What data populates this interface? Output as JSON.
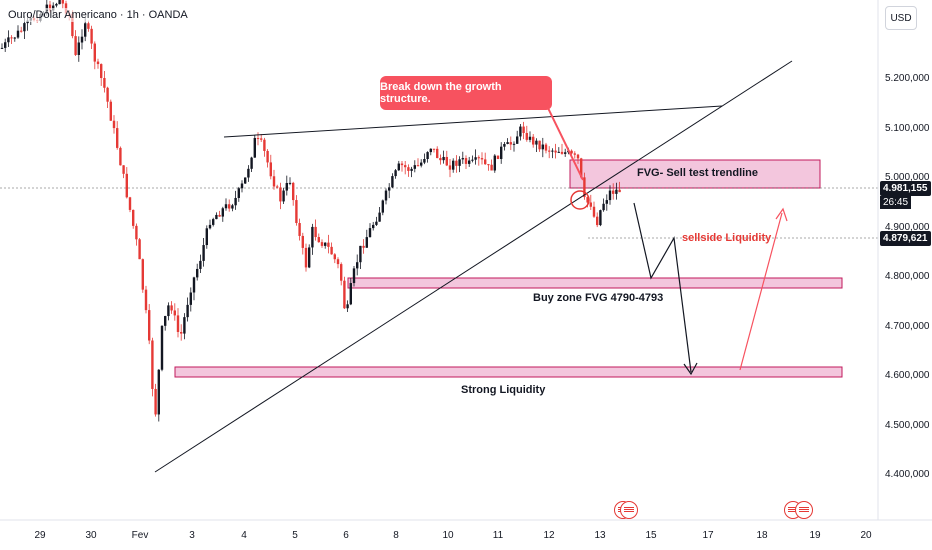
{
  "header": {
    "title": "Ouro/Dólar Americano · 1h · OANDA",
    "currency": "USD"
  },
  "price_axis": {
    "ticks": [
      "5.200,000",
      "5.100,000",
      "5.000,000",
      "4.900,000",
      "4.800,000",
      "4.700,000",
      "4.600,000",
      "4.500,000",
      "4.400,000"
    ],
    "current_price": "4.981,155",
    "countdown": "26:45",
    "liquidity_price": "4.879,621"
  },
  "time_axis": {
    "ticks": [
      "29",
      "30",
      "Fev",
      "3",
      "4",
      "5",
      "6",
      "8",
      "10",
      "11",
      "12",
      "13",
      "15",
      "17",
      "18",
      "19",
      "20"
    ]
  },
  "annotations": {
    "callout": "Break down the growth structure.",
    "fvg_sell": "FVG- Sell test trendline",
    "sellside": "sellside Liquidity",
    "buy_zone": "Buy zone FVG 4790-4793",
    "strong_liquidity": "Strong Liquidity"
  },
  "colors": {
    "bull": "#131722",
    "bear": "#e53935",
    "zone": "#f8bbd0",
    "zone_border": "#c2185b",
    "accent": "#f7525f"
  },
  "events": {
    "icons": [
      "us-flag-icon",
      "us-flag-icon",
      "us-flag-icon"
    ]
  }
}
